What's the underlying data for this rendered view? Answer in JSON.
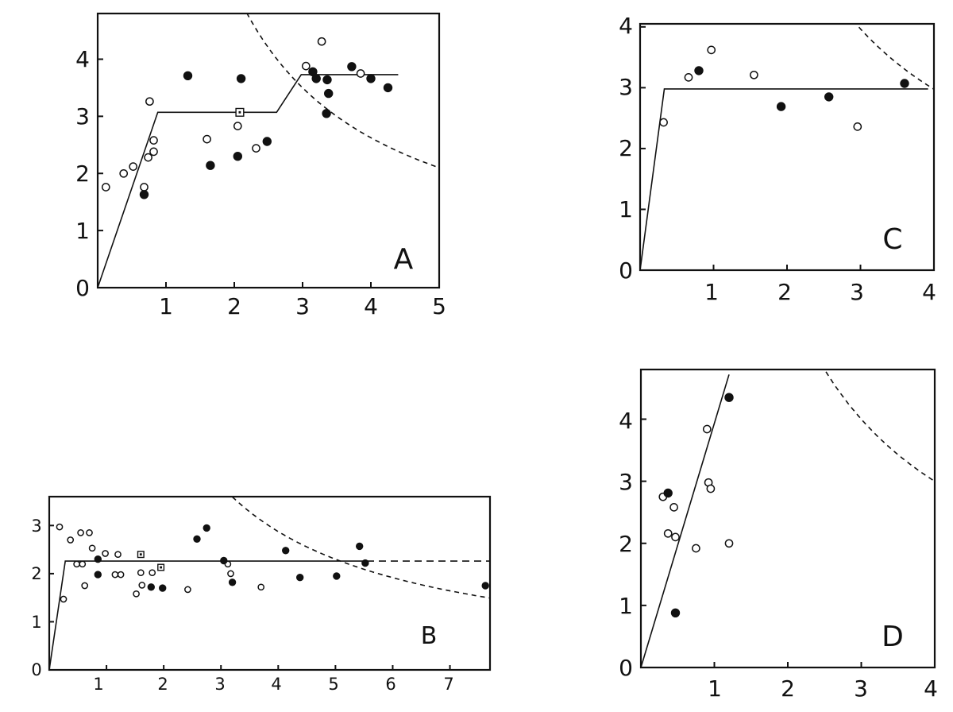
{
  "chart_data": [
    {
      "panel": "A",
      "type": "scatter",
      "xlim": [
        0,
        5
      ],
      "ylim": [
        0,
        4.8
      ],
      "xticks": [
        "1",
        "2",
        "3",
        "4",
        "5"
      ],
      "yticks": [
        "0",
        "1",
        "2",
        "3",
        "4"
      ],
      "open_points": [
        [
          0.12,
          1.76
        ],
        [
          0.38,
          2.0
        ],
        [
          0.52,
          2.12
        ],
        [
          0.68,
          1.76
        ],
        [
          0.74,
          2.28
        ],
        [
          0.76,
          3.26
        ],
        [
          0.82,
          2.38
        ],
        [
          0.82,
          2.58
        ],
        [
          1.6,
          2.6
        ],
        [
          2.05,
          2.83
        ],
        [
          2.32,
          2.44
        ],
        [
          3.05,
          3.88
        ],
        [
          3.28,
          4.31
        ],
        [
          3.85,
          3.75
        ]
      ],
      "filled_points": [
        [
          0.68,
          1.63
        ],
        [
          1.32,
          3.71
        ],
        [
          1.65,
          2.14
        ],
        [
          2.05,
          2.3
        ],
        [
          2.1,
          3.66
        ],
        [
          2.48,
          2.56
        ],
        [
          3.15,
          3.78
        ],
        [
          3.2,
          3.66
        ],
        [
          3.35,
          3.05
        ],
        [
          3.36,
          3.64
        ],
        [
          3.38,
          3.4
        ],
        [
          3.72,
          3.87
        ],
        [
          4.0,
          3.66
        ],
        [
          4.25,
          3.5
        ]
      ],
      "square_points": [
        [
          2.08,
          3.07
        ]
      ],
      "fit_line": [
        [
          0,
          0
        ],
        [
          0.88,
          3.07
        ],
        [
          2.62,
          3.07
        ],
        [
          2.98,
          3.73
        ],
        [
          4.4,
          3.73
        ]
      ],
      "dashed_curve": {
        "k": 10.5,
        "x_from": 1.65,
        "x_to": 5
      },
      "label": "A"
    },
    {
      "panel": "B",
      "type": "scatter",
      "xlim": [
        0,
        7.7
      ],
      "ylim": [
        0,
        3.6
      ],
      "xticks": [
        "1",
        "2",
        "3",
        "4",
        "5",
        "6",
        "7"
      ],
      "yticks": [
        "0",
        "1",
        "2",
        "3"
      ],
      "open_points": [
        [
          0.18,
          2.97
        ],
        [
          0.25,
          1.47
        ],
        [
          0.37,
          2.7
        ],
        [
          0.48,
          2.2
        ],
        [
          0.55,
          2.85
        ],
        [
          0.58,
          2.2
        ],
        [
          0.62,
          1.75
        ],
        [
          0.7,
          2.85
        ],
        [
          0.75,
          2.53
        ],
        [
          0.98,
          2.42
        ],
        [
          1.15,
          1.98
        ],
        [
          1.2,
          2.4
        ],
        [
          1.25,
          1.98
        ],
        [
          1.52,
          1.58
        ],
        [
          1.6,
          2.02
        ],
        [
          1.62,
          1.76
        ],
        [
          1.8,
          2.02
        ],
        [
          2.42,
          1.67
        ],
        [
          3.12,
          2.2
        ],
        [
          3.17,
          2.0
        ],
        [
          3.7,
          1.72
        ]
      ],
      "filled_points": [
        [
          0.85,
          2.3
        ],
        [
          0.85,
          1.98
        ],
        [
          1.78,
          1.72
        ],
        [
          1.98,
          1.7
        ],
        [
          2.58,
          2.72
        ],
        [
          2.75,
          2.95
        ],
        [
          3.05,
          2.27
        ],
        [
          3.2,
          1.82
        ],
        [
          4.13,
          2.48
        ],
        [
          4.38,
          1.92
        ],
        [
          5.02,
          1.95
        ],
        [
          5.42,
          2.57
        ],
        [
          5.52,
          2.22
        ],
        [
          7.62,
          1.75
        ]
      ],
      "square_points": [
        [
          1.6,
          2.4
        ],
        [
          1.95,
          2.13
        ]
      ],
      "fit_line": [
        [
          0,
          0
        ],
        [
          0.28,
          2.26
        ],
        [
          5.55,
          2.26
        ]
      ],
      "fit_line_dashed": [
        [
          5.55,
          2.26
        ],
        [
          7.7,
          2.26
        ]
      ],
      "dashed_curve": {
        "k": 11.5,
        "x_from": 3.2,
        "x_to": 7.7
      },
      "label": "B"
    },
    {
      "panel": "C",
      "type": "scatter",
      "xlim": [
        0,
        4
      ],
      "ylim": [
        0,
        4.05
      ],
      "xticks": [
        "1",
        "2",
        "3",
        "4"
      ],
      "yticks": [
        "0",
        "1",
        "2",
        "3",
        "4"
      ],
      "open_points": [
        [
          0.32,
          2.43
        ],
        [
          0.66,
          3.17
        ],
        [
          0.97,
          3.62
        ],
        [
          1.55,
          3.21
        ],
        [
          2.96,
          2.36
        ]
      ],
      "filled_points": [
        [
          0.8,
          3.28
        ],
        [
          1.92,
          2.69
        ],
        [
          2.57,
          2.85
        ],
        [
          3.6,
          3.07
        ]
      ],
      "square_points": [],
      "fit_line": [
        [
          0,
          0
        ],
        [
          0.33,
          2.98
        ],
        [
          3.92,
          2.98
        ]
      ],
      "dashed_curve": {
        "k": 11.9,
        "x_from": 2.9,
        "x_to": 4
      },
      "label": "C"
    },
    {
      "panel": "D",
      "type": "scatter",
      "xlim": [
        0,
        4
      ],
      "ylim": [
        0,
        4.8
      ],
      "xticks": [
        "1",
        "2",
        "3",
        "4"
      ],
      "yticks": [
        "0",
        "1",
        "2",
        "3",
        "4"
      ],
      "open_points": [
        [
          0.3,
          2.75
        ],
        [
          0.37,
          2.16
        ],
        [
          0.45,
          2.58
        ],
        [
          0.47,
          2.1
        ],
        [
          0.75,
          1.92
        ],
        [
          0.9,
          3.84
        ],
        [
          0.92,
          2.98
        ],
        [
          0.95,
          2.88
        ],
        [
          1.2,
          2.0
        ]
      ],
      "filled_points": [
        [
          0.37,
          2.81
        ],
        [
          0.47,
          0.88
        ],
        [
          1.2,
          4.35
        ]
      ],
      "square_points": [],
      "fit_line": [
        [
          0,
          0
        ],
        [
          1.2,
          4.72
        ]
      ],
      "dashed_curve": {
        "k": 12,
        "x_from": 1.6,
        "x_to": 4
      },
      "label": "D"
    }
  ]
}
